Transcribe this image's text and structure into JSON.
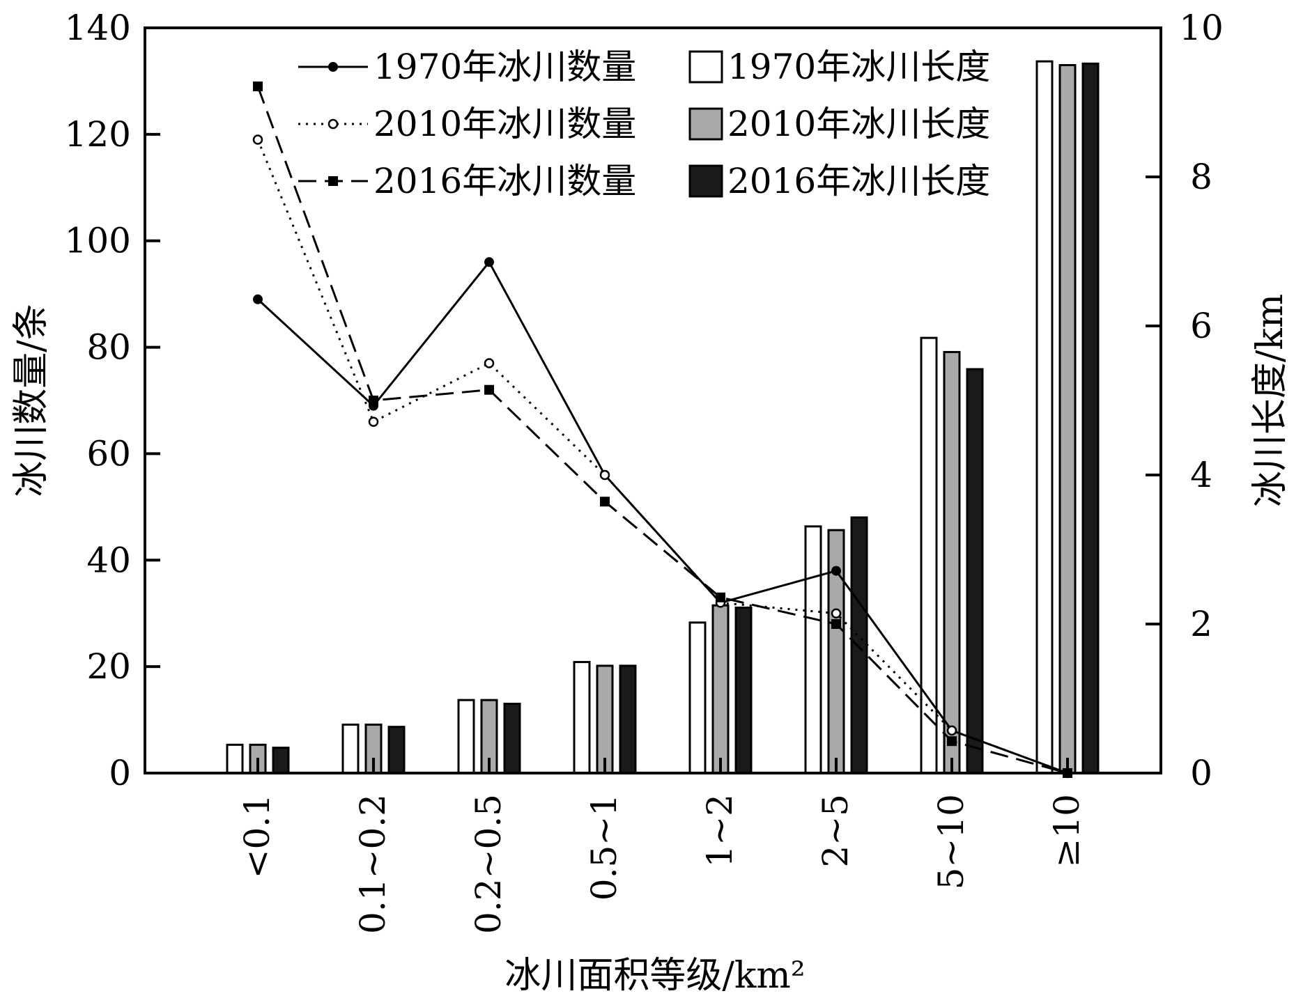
{
  "chart_data": {
    "type": "bar",
    "categories": [
      "<0.1",
      "0.1~0.2",
      "0.2~0.5",
      "0.5~1",
      "1~2",
      "2~5",
      "5~10",
      "≥10"
    ],
    "xlabel": "冰川面积等级/km²",
    "ylabel_left": "冰川数量/条",
    "ylabel_right": "冰川长度/km",
    "ylim_left": [
      0,
      140
    ],
    "ylim_right": [
      0,
      10
    ],
    "yticks_left": [
      "0",
      "20",
      "40",
      "60",
      "80",
      "100",
      "120",
      "140"
    ],
    "yticks_right": [
      "0",
      "2",
      "4",
      "6",
      "8",
      "10"
    ],
    "bar_series": [
      {
        "name": "1970年冰川长度",
        "axis": "right",
        "color": "#ffffff",
        "values": [
          0.38,
          0.65,
          0.98,
          1.49,
          2.02,
          3.31,
          5.84,
          9.55
        ]
      },
      {
        "name": "2010年冰川长度",
        "axis": "right",
        "color": "#a9a9a9",
        "values": [
          0.38,
          0.65,
          0.98,
          1.44,
          2.25,
          3.26,
          5.65,
          9.5
        ]
      },
      {
        "name": "2016年冰川长度",
        "axis": "right",
        "color": "#1a1a1a",
        "values": [
          0.34,
          0.62,
          0.93,
          1.44,
          2.22,
          3.43,
          5.42,
          9.52
        ]
      }
    ],
    "line_series": [
      {
        "name": "1970年冰川数量",
        "axis": "left",
        "style": "solid",
        "marker": "filled-circle",
        "values": [
          89,
          69,
          96,
          56,
          32,
          38,
          8,
          0
        ]
      },
      {
        "name": "2010年冰川数量",
        "axis": "left",
        "style": "dotted",
        "marker": "open-circle",
        "values": [
          119,
          66,
          77,
          56,
          32,
          30,
          8,
          0
        ]
      },
      {
        "name": "2016年冰川数量",
        "axis": "left",
        "style": "dashed",
        "marker": "filled-square",
        "values": [
          129,
          70,
          72,
          51,
          33,
          28,
          6,
          0
        ]
      }
    ],
    "legend": {
      "placement": "top-right",
      "rows": [
        {
          "line": "1970年冰川数量",
          "bar": "1970年冰川长度"
        },
        {
          "line": "2010年冰川数量",
          "bar": "2010年冰川长度"
        },
        {
          "line": "2016年冰川数量",
          "bar": "2016年冰川长度"
        }
      ]
    }
  }
}
